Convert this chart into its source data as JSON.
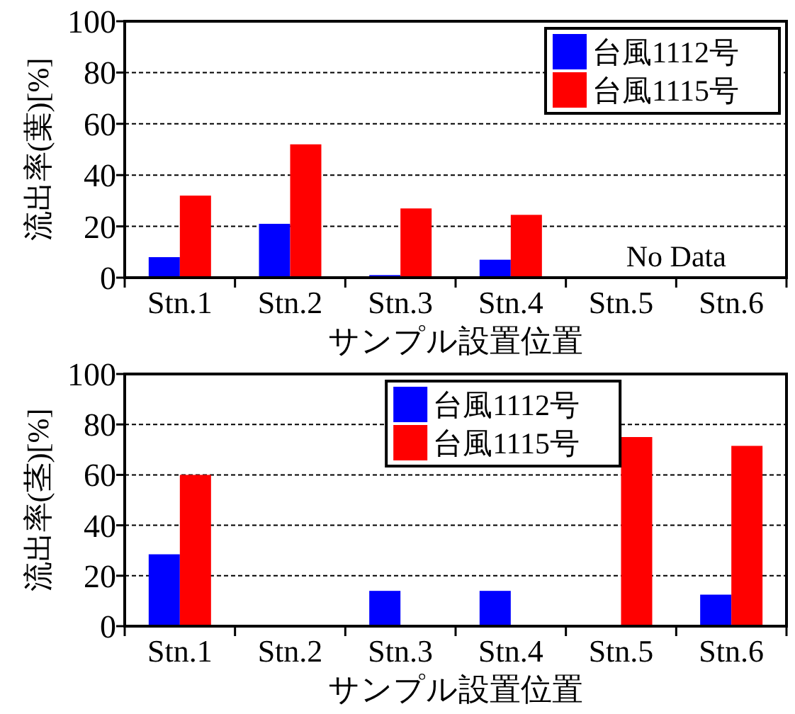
{
  "chart_data": [
    {
      "type": "bar",
      "ylabel": "流出率(葉)[%]",
      "xlabel": "サンプル設置位置",
      "categories": [
        "Stn.1",
        "Stn.2",
        "Stn.3",
        "Stn.4",
        "Stn.5",
        "Stn.6"
      ],
      "series": [
        {
          "name": "台風1112号",
          "color": "#0000ff",
          "values": [
            8,
            21,
            1,
            7,
            null,
            null
          ]
        },
        {
          "name": "台風1115号",
          "color": "#ff0000",
          "values": [
            32,
            52,
            27,
            24.5,
            null,
            null
          ]
        }
      ],
      "ylim": [
        0,
        100
      ],
      "yticks": [
        0,
        20,
        40,
        60,
        80,
        100
      ],
      "grid": "y",
      "legend": "top right",
      "annotations": [
        "No Data"
      ]
    },
    {
      "type": "bar",
      "ylabel": "流出率(茎)[%]",
      "xlabel": "サンプル設置位置",
      "categories": [
        "Stn.1",
        "Stn.2",
        "Stn.3",
        "Stn.4",
        "Stn.5",
        "Stn.6"
      ],
      "series": [
        {
          "name": "台風1112号",
          "color": "#0000ff",
          "values": [
            28.5,
            0,
            14,
            14,
            0,
            12.5
          ]
        },
        {
          "name": "台風1115号",
          "color": "#ff0000",
          "values": [
            60,
            0,
            0,
            0,
            75,
            71.5
          ]
        }
      ],
      "ylim": [
        0,
        100
      ],
      "yticks": [
        0,
        20,
        40,
        60,
        80,
        100
      ],
      "grid": "y",
      "legend": "top"
    }
  ]
}
